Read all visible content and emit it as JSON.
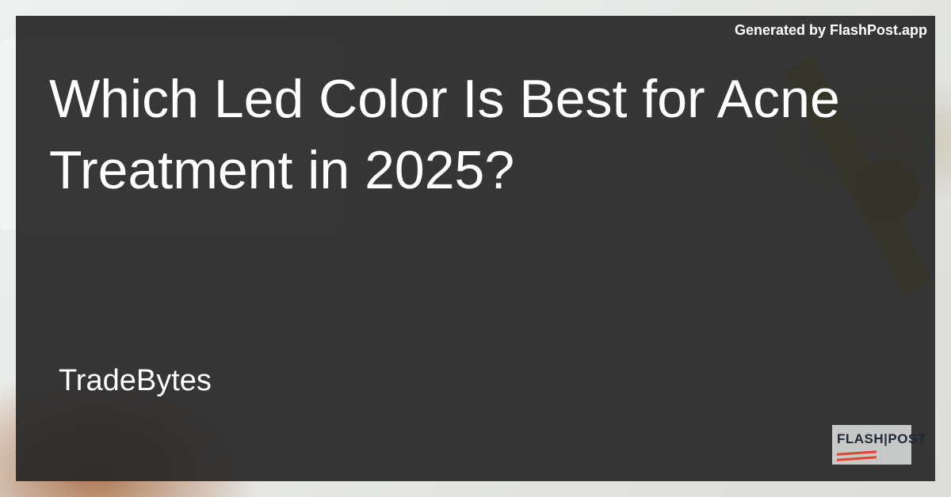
{
  "watermark": "Generated by FlashPost.app",
  "title": "Which Led Color Is Best for Acne Treatment in 2025?",
  "author": "TradeBytes",
  "logo": {
    "text": "FLASH|POST",
    "accent": "#e0442a"
  },
  "colors": {
    "overlay": "#282828",
    "text": "#ffffff"
  }
}
